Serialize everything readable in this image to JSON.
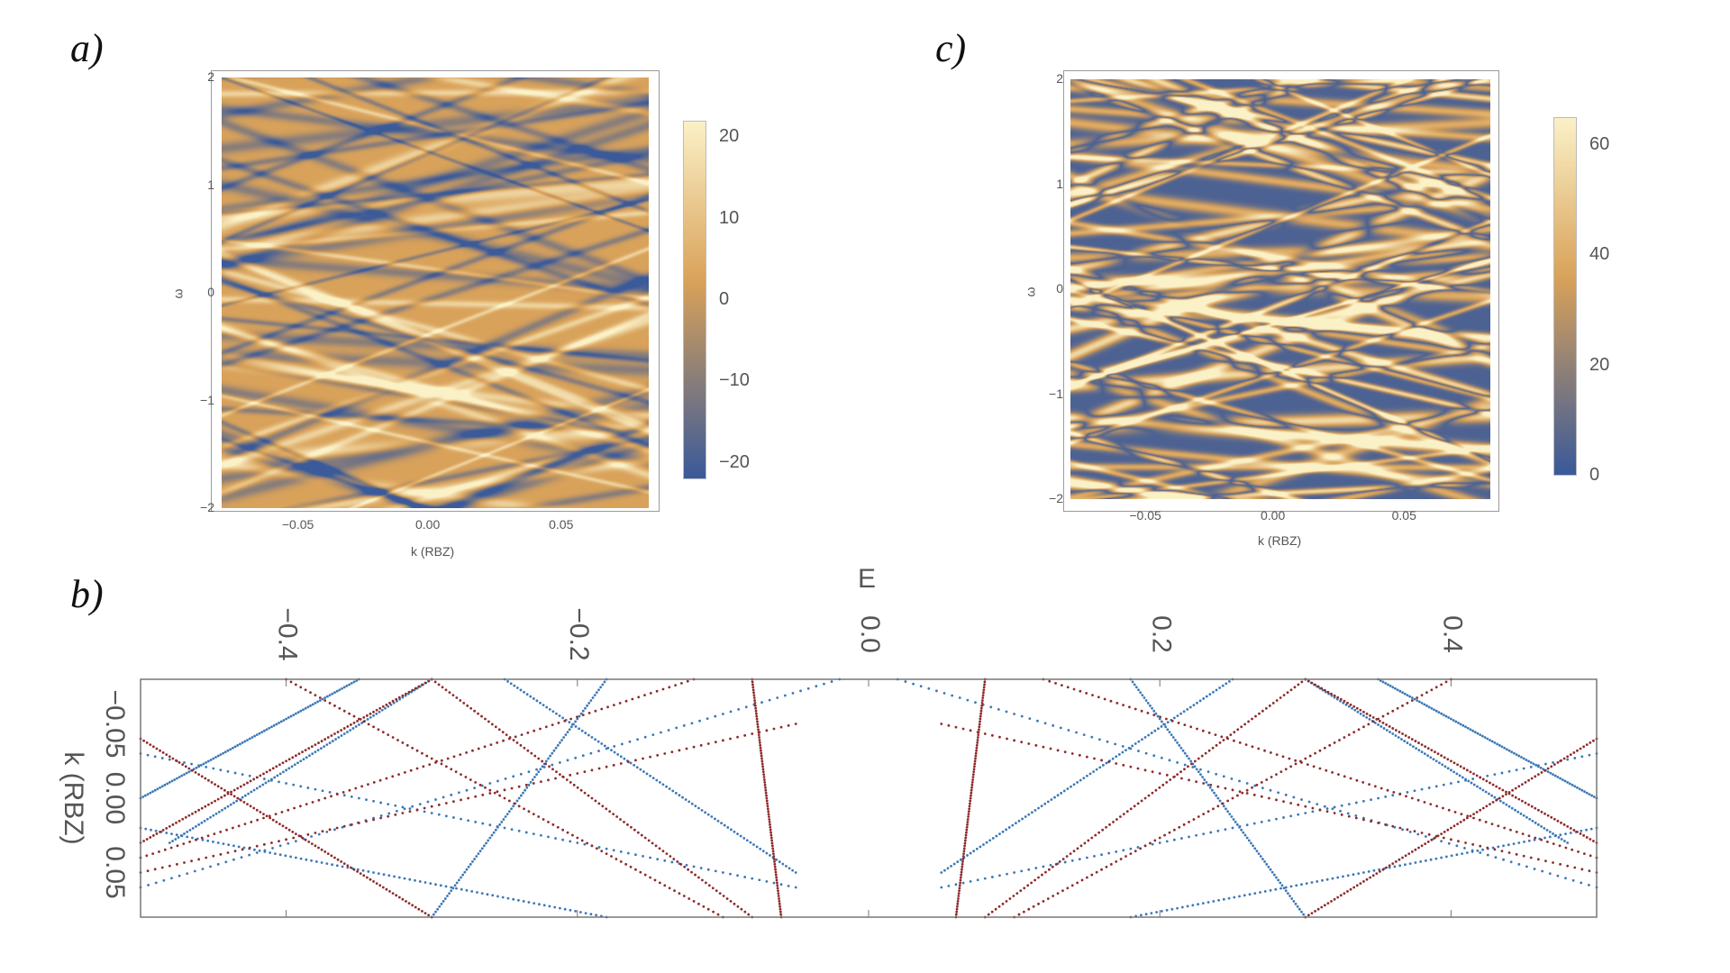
{
  "panels": {
    "a": "a)",
    "b": "b)",
    "c": "c)"
  },
  "colors": {
    "heat_low": "#3b5a9a",
    "heat_mid": "#d9a25a",
    "heat_high": "#fbf1c7",
    "series_blue": "#3b78b6",
    "series_red": "#8e2a2a"
  },
  "chart_data": [
    {
      "id": "a",
      "type": "heatmap",
      "xlabel": "k (RBZ)",
      "ylabel": "ω",
      "xlim": [
        -0.08,
        0.08
      ],
      "ylim": [
        -2,
        2
      ],
      "xticks": [
        "−0.05",
        "0.00",
        "0.05"
      ],
      "xtick_values": [
        -0.05,
        0.0,
        0.05
      ],
      "yticks": [
        "2",
        "1",
        "0",
        "−1",
        "−2"
      ],
      "ytick_values": [
        2,
        1,
        0,
        -1,
        -2
      ],
      "colorbar": {
        "range": [
          -22,
          22
        ],
        "ticks": [
          "20",
          "10",
          "0",
          "−10",
          "−20"
        ],
        "tick_values": [
          20,
          10,
          0,
          -10,
          -20
        ]
      }
    },
    {
      "id": "c",
      "type": "heatmap",
      "xlabel": "k (RBZ)",
      "ylabel": "ω",
      "xlim": [
        -0.08,
        0.08
      ],
      "ylim": [
        -2,
        2
      ],
      "xticks": [
        "−0.05",
        "0.00",
        "0.05"
      ],
      "xtick_values": [
        -0.05,
        0.0,
        0.05
      ],
      "yticks": [
        "2",
        "1",
        "0",
        "−1",
        "−2"
      ],
      "ytick_values": [
        2,
        1,
        0,
        -1,
        -2
      ],
      "colorbar": {
        "range": [
          0,
          65
        ],
        "ticks": [
          "60",
          "40",
          "20",
          "0"
        ],
        "tick_values": [
          60,
          40,
          20,
          0
        ]
      }
    },
    {
      "id": "b",
      "type": "scatter",
      "xlabel": "E",
      "ylabel": "k (RBZ)",
      "xlim": [
        -0.5,
        0.5
      ],
      "ylim": [
        -0.08,
        0.08
      ],
      "xticks": [
        "−0.4",
        "−0.2",
        "0.0",
        "0.2",
        "0.4"
      ],
      "xtick_values": [
        -0.4,
        -0.2,
        0.0,
        0.2,
        0.4
      ],
      "yticks": [
        "−0.05",
        "0.00",
        "0.05"
      ],
      "ytick_values": [
        -0.05,
        0.0,
        0.05
      ],
      "series": [
        {
          "color": "blue",
          "points": [
            [
              -0.18,
              -0.08
            ],
            [
              -0.3,
              0.08
            ]
          ]
        },
        {
          "color": "blue",
          "points": [
            [
              -0.48,
              0.03
            ],
            [
              -0.3,
              -0.08
            ]
          ]
        },
        {
          "color": "blue",
          "points": [
            [
              -0.5,
              0.06
            ],
            [
              -0.02,
              -0.08
            ]
          ]
        },
        {
          "color": "blue",
          "points": [
            [
              -0.5,
              -0.03
            ],
            [
              -0.05,
              0.06
            ]
          ]
        },
        {
          "color": "blue",
          "points": [
            [
              -0.5,
              0.02
            ],
            [
              -0.18,
              0.08
            ]
          ]
        },
        {
          "color": "blue",
          "points": [
            [
              -0.25,
              -0.08
            ],
            [
              -0.05,
              0.05
            ]
          ]
        },
        {
          "color": "blue",
          "points": [
            [
              -0.35,
              -0.08
            ],
            [
              -0.5,
              0.0
            ]
          ]
        },
        {
          "color": "red",
          "points": [
            [
              -0.3,
              -0.08
            ],
            [
              -0.5,
              0.03
            ]
          ]
        },
        {
          "color": "red",
          "points": [
            [
              -0.3,
              -0.08
            ],
            [
              -0.08,
              0.08
            ]
          ]
        },
        {
          "color": "red",
          "points": [
            [
              -0.5,
              -0.04
            ],
            [
              -0.3,
              0.08
            ]
          ]
        },
        {
          "color": "red",
          "points": [
            [
              -0.5,
              0.04
            ],
            [
              -0.12,
              -0.08
            ]
          ]
        },
        {
          "color": "red",
          "points": [
            [
              -0.4,
              -0.08
            ],
            [
              -0.1,
              0.08
            ]
          ]
        },
        {
          "color": "red",
          "points": [
            [
              -0.5,
              0.05
            ],
            [
              -0.05,
              -0.05
            ]
          ]
        },
        {
          "color": "red",
          "points": [
            [
              -0.08,
              -0.08
            ],
            [
              -0.06,
              0.08
            ]
          ]
        },
        {
          "color": "blue",
          "points": [
            [
              0.18,
              -0.08
            ],
            [
              0.3,
              0.08
            ]
          ]
        },
        {
          "color": "blue",
          "points": [
            [
              0.48,
              0.03
            ],
            [
              0.3,
              -0.08
            ]
          ]
        },
        {
          "color": "blue",
          "points": [
            [
              0.5,
              0.06
            ],
            [
              0.02,
              -0.08
            ]
          ]
        },
        {
          "color": "blue",
          "points": [
            [
              0.5,
              -0.03
            ],
            [
              0.05,
              0.06
            ]
          ]
        },
        {
          "color": "blue",
          "points": [
            [
              0.5,
              0.02
            ],
            [
              0.18,
              0.08
            ]
          ]
        },
        {
          "color": "blue",
          "points": [
            [
              0.25,
              -0.08
            ],
            [
              0.05,
              0.05
            ]
          ]
        },
        {
          "color": "blue",
          "points": [
            [
              0.35,
              -0.08
            ],
            [
              0.5,
              0.0
            ]
          ]
        },
        {
          "color": "red",
          "points": [
            [
              0.3,
              -0.08
            ],
            [
              0.5,
              0.03
            ]
          ]
        },
        {
          "color": "red",
          "points": [
            [
              0.3,
              -0.08
            ],
            [
              0.08,
              0.08
            ]
          ]
        },
        {
          "color": "red",
          "points": [
            [
              0.5,
              -0.04
            ],
            [
              0.3,
              0.08
            ]
          ]
        },
        {
          "color": "red",
          "points": [
            [
              0.5,
              0.04
            ],
            [
              0.12,
              -0.08
            ]
          ]
        },
        {
          "color": "red",
          "points": [
            [
              0.4,
              -0.08
            ],
            [
              0.1,
              0.08
            ]
          ]
        },
        {
          "color": "red",
          "points": [
            [
              0.5,
              0.05
            ],
            [
              0.05,
              -0.05
            ]
          ]
        },
        {
          "color": "red",
          "points": [
            [
              0.08,
              -0.08
            ],
            [
              0.06,
              0.08
            ]
          ]
        }
      ]
    }
  ]
}
